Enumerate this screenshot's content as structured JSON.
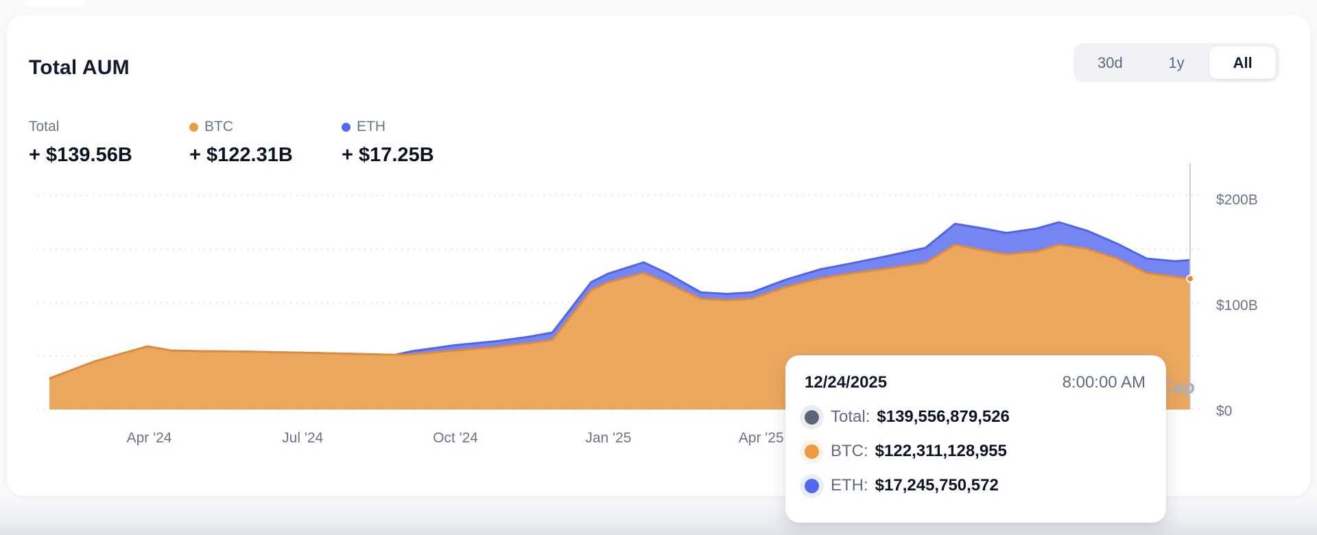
{
  "header": {
    "title": "Total AUM"
  },
  "range_selector": {
    "options": [
      {
        "label": "30d",
        "active": false
      },
      {
        "label": "1y",
        "active": false
      },
      {
        "label": "All",
        "active": true
      }
    ]
  },
  "stats": [
    {
      "label": "Total",
      "value": "+ $139.56B",
      "dot_color": null
    },
    {
      "label": "BTC",
      "value": "+ $122.31B",
      "dot_color": "#EC9A44"
    },
    {
      "label": "ETH",
      "value": "+ $17.25B",
      "dot_color": "#5268EF"
    }
  ],
  "tooltip": {
    "date": "12/24/2025",
    "time": "8:00:00 AM",
    "rows": [
      {
        "label": "Total:",
        "value": "$139,556,879,526",
        "dot_color": "#5D6677"
      },
      {
        "label": "BTC:",
        "value": "$122,311,128,955",
        "dot_color": "#EC9A44"
      },
      {
        "label": "ETH:",
        "value": "$17,245,750,572",
        "dot_color": "#5268EF"
      }
    ]
  },
  "watermark": "Cap",
  "chart_data": {
    "type": "area",
    "stacked": true,
    "title": "Total AUM",
    "unit": "USD billions",
    "ylim": [
      0,
      200
    ],
    "grid_values": [
      0,
      50,
      100,
      150,
      200
    ],
    "y_ticks": [
      {
        "v": 200,
        "label": "$200B"
      },
      {
        "v": 100,
        "label": "$100B"
      },
      {
        "v": 0,
        "label": "$0"
      }
    ],
    "x_ticks": [
      {
        "t": 0.0875,
        "label": "Apr '24"
      },
      {
        "t": 0.222,
        "label": "Jul '24"
      },
      {
        "t": 0.356,
        "label": "Oct '24"
      },
      {
        "t": 0.49,
        "label": "Jan '25"
      },
      {
        "t": 0.624,
        "label": "Apr '25"
      }
    ],
    "series_style": {
      "btc": {
        "name": "BTC",
        "fill": "#ECA75F",
        "stroke": "#E08B3C"
      },
      "eth": {
        "name": "ETH",
        "fill": "#7586F2",
        "stroke": "#5064E8"
      }
    },
    "crosshair_t": 1.0,
    "points": [
      {
        "t": 0.0,
        "btc": 29.0,
        "eth": 0
      },
      {
        "t": 0.04,
        "btc": 45.0,
        "eth": 0
      },
      {
        "t": 0.086,
        "btc": 59.0,
        "eth": 0
      },
      {
        "t": 0.107,
        "btc": 55.0,
        "eth": 0
      },
      {
        "t": 0.132,
        "btc": 54.5,
        "eth": 0
      },
      {
        "t": 0.177,
        "btc": 54.0,
        "eth": 0
      },
      {
        "t": 0.221,
        "btc": 53.0,
        "eth": 0
      },
      {
        "t": 0.266,
        "btc": 52.0,
        "eth": 0
      },
      {
        "t": 0.303,
        "btc": 51.0,
        "eth": 0
      },
      {
        "t": 0.318,
        "btc": 51.5,
        "eth": 3
      },
      {
        "t": 0.355,
        "btc": 55.0,
        "eth": 5
      },
      {
        "t": 0.393,
        "btc": 58.5,
        "eth": 5.5
      },
      {
        "t": 0.421,
        "btc": 62.0,
        "eth": 6
      },
      {
        "t": 0.441,
        "btc": 65.0,
        "eth": 7
      },
      {
        "t": 0.475,
        "btc": 111.5,
        "eth": 7.5
      },
      {
        "t": 0.49,
        "btc": 119.0,
        "eth": 8
      },
      {
        "t": 0.521,
        "btc": 127.5,
        "eth": 10
      },
      {
        "t": 0.542,
        "btc": 118.0,
        "eth": 9
      },
      {
        "t": 0.571,
        "btc": 103.5,
        "eth": 6
      },
      {
        "t": 0.594,
        "btc": 102.0,
        "eth": 6
      },
      {
        "t": 0.616,
        "btc": 103.5,
        "eth": 6
      },
      {
        "t": 0.646,
        "btc": 114.5,
        "eth": 7
      },
      {
        "t": 0.676,
        "btc": 122.5,
        "eth": 8.5
      },
      {
        "t": 0.705,
        "btc": 127.5,
        "eth": 9.5
      },
      {
        "t": 0.733,
        "btc": 131.5,
        "eth": 11.5
      },
      {
        "t": 0.768,
        "btc": 137.0,
        "eth": 14
      },
      {
        "t": 0.794,
        "btc": 154.0,
        "eth": 19.5
      },
      {
        "t": 0.817,
        "btc": 149.0,
        "eth": 20.5
      },
      {
        "t": 0.839,
        "btc": 145.0,
        "eth": 20
      },
      {
        "t": 0.865,
        "btc": 147.5,
        "eth": 21.5
      },
      {
        "t": 0.885,
        "btc": 154.0,
        "eth": 21
      },
      {
        "t": 0.91,
        "btc": 150.0,
        "eth": 17
      },
      {
        "t": 0.936,
        "btc": 141.0,
        "eth": 14
      },
      {
        "t": 0.962,
        "btc": 127.5,
        "eth": 13.5
      },
      {
        "t": 0.987,
        "btc": 124.0,
        "eth": 14.5
      },
      {
        "t": 1.0,
        "btc": 122.31,
        "eth": 17.25
      }
    ]
  }
}
